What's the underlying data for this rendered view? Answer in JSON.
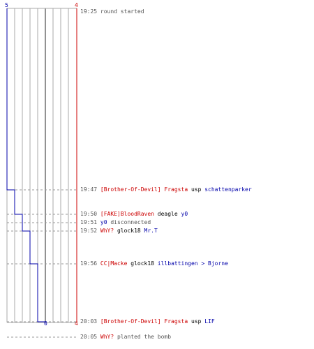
{
  "scale": {
    "left_top": "5",
    "right_top": "4",
    "blue_bottom": "0",
    "right_bottom": "4"
  },
  "colors": {
    "team_a": "#cc0000",
    "team_b": "#0000aa",
    "grid": "#aaaaaa",
    "dash": "#999999"
  },
  "chart_data": {
    "type": "line",
    "series": [
      {
        "values": [
          5,
          4,
          3,
          2,
          1,
          0
        ]
      },
      {
        "values": [
          4,
          4,
          4,
          4,
          4,
          4
        ]
      }
    ]
  },
  "events": [
    {
      "time": "19:25",
      "parts": [
        {
          "text": "round started",
          "c": "txt"
        }
      ]
    },
    {
      "time": "19:47",
      "parts": [
        {
          "text": "[Brother-Of-Devil] Fragsta",
          "c": "red"
        },
        {
          "text": " usp ",
          "c": "blk"
        },
        {
          "text": "schattenparker",
          "c": "blue"
        }
      ]
    },
    {
      "time": "19:50",
      "parts": [
        {
          "text": "[FAKE]BloodRaven",
          "c": "red"
        },
        {
          "text": " deagle ",
          "c": "blk"
        },
        {
          "text": "y0",
          "c": "blue"
        }
      ]
    },
    {
      "time": "19:51",
      "parts": [
        {
          "text": "y0",
          "c": "blue"
        },
        {
          "text": " disconnected",
          "c": "txt"
        }
      ]
    },
    {
      "time": "19:52",
      "parts": [
        {
          "text": "WhY?",
          "c": "red"
        },
        {
          "text": " glock18 ",
          "c": "blk"
        },
        {
          "text": "Mr.T",
          "c": "blue"
        }
      ]
    },
    {
      "time": "19:56",
      "parts": [
        {
          "text": "CC|Macke",
          "c": "red"
        },
        {
          "text": " glock18 ",
          "c": "blk"
        },
        {
          "text": "illbattingen > Bjorne",
          "c": "blue"
        }
      ]
    },
    {
      "time": "20:03",
      "parts": [
        {
          "text": "[Brother-Of-Devil] Fragsta",
          "c": "red"
        },
        {
          "text": " usp ",
          "c": "blk"
        },
        {
          "text": "LIF",
          "c": "blue"
        }
      ]
    },
    {
      "time": "20:05",
      "parts": [
        {
          "text": "WhY?",
          "c": "red"
        },
        {
          "text": " planted the bomb",
          "c": "txt"
        }
      ]
    }
  ]
}
